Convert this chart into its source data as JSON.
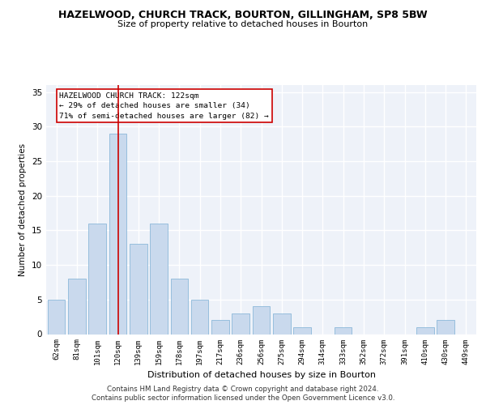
{
  "title": "HAZELWOOD, CHURCH TRACK, BOURTON, GILLINGHAM, SP8 5BW",
  "subtitle": "Size of property relative to detached houses in Bourton",
  "xlabel": "Distribution of detached houses by size in Bourton",
  "ylabel": "Number of detached properties",
  "footnote1": "Contains HM Land Registry data © Crown copyright and database right 2024.",
  "footnote2": "Contains public sector information licensed under the Open Government Licence v3.0.",
  "bar_color": "#c9d9ed",
  "bar_edge_color": "#7bafd4",
  "highlight_line_color": "#cc0000",
  "highlight_bin_index": 3,
  "annotation_title": "HAZELWOOD CHURCH TRACK: 122sqm",
  "annotation_line1": "← 29% of detached houses are smaller (34)",
  "annotation_line2": "71% of semi-detached houses are larger (82) →",
  "categories": [
    "62sqm",
    "81sqm",
    "101sqm",
    "120sqm",
    "139sqm",
    "159sqm",
    "178sqm",
    "197sqm",
    "217sqm",
    "236sqm",
    "256sqm",
    "275sqm",
    "294sqm",
    "314sqm",
    "333sqm",
    "352sqm",
    "372sqm",
    "391sqm",
    "410sqm",
    "430sqm",
    "449sqm"
  ],
  "values": [
    5,
    8,
    16,
    29,
    13,
    16,
    8,
    5,
    2,
    3,
    4,
    3,
    1,
    0,
    1,
    0,
    0,
    0,
    1,
    2,
    0
  ],
  "ylim": [
    0,
    36
  ],
  "yticks": [
    0,
    5,
    10,
    15,
    20,
    25,
    30,
    35
  ],
  "background_color": "#eef2f9",
  "grid_color": "#ffffff",
  "fig_background": "#ffffff"
}
